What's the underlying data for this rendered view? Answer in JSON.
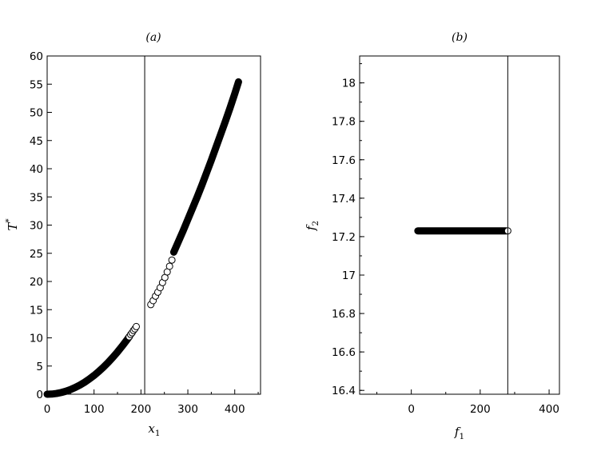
{
  "chart_data": [
    {
      "type": "scatter",
      "title": "(a)",
      "xlabel": "x",
      "xlabel_sub": "1",
      "ylabel": "T",
      "ylabel_sup": "*",
      "xlim": [
        0,
        455
      ],
      "ylim": [
        0,
        60
      ],
      "xticks": [
        0,
        100,
        200,
        300,
        400
      ],
      "yticks": [
        0,
        5,
        10,
        15,
        20,
        25,
        30,
        35,
        40,
        45,
        50,
        55,
        60
      ],
      "vline_x": 208,
      "series": [
        {
          "marker": "filled-circle",
          "color": "#000000",
          "x": [
            0,
            10,
            20,
            30,
            40,
            50,
            60,
            70,
            80,
            90,
            100,
            110,
            120,
            130,
            140,
            150,
            160,
            170,
            175
          ],
          "y": [
            0.0,
            0.03,
            0.13,
            0.3,
            0.53,
            0.83,
            1.2,
            1.63,
            2.13,
            2.7,
            3.33,
            4.03,
            4.8,
            5.63,
            6.53,
            7.5,
            8.53,
            9.63,
            10.2
          ]
        },
        {
          "marker": "filled-circle",
          "color": "#000000",
          "x": [
            270,
            280,
            290,
            300,
            310,
            320,
            330,
            340,
            350,
            360,
            370,
            380,
            390,
            400,
            408
          ],
          "y": [
            25.2,
            27.1,
            29.0,
            31.0,
            33.0,
            35.0,
            37.1,
            39.3,
            41.5,
            43.8,
            46.1,
            48.4,
            50.8,
            53.3,
            55.4
          ]
        },
        {
          "marker": "open-circle",
          "color": "#000000",
          "x": [
            175,
            178,
            181,
            184,
            187,
            190
          ],
          "y": [
            10.2,
            10.6,
            10.9,
            11.3,
            11.6,
            12.0
          ]
        },
        {
          "marker": "open-circle",
          "color": "#000000",
          "x": [
            221,
            226,
            231,
            236,
            241,
            246,
            251,
            256,
            261,
            266
          ],
          "y": [
            15.9,
            16.6,
            17.4,
            18.1,
            18.9,
            19.8,
            20.7,
            21.7,
            22.7,
            23.8
          ]
        }
      ]
    },
    {
      "type": "scatter",
      "title": "(b)",
      "xlabel": "f",
      "xlabel_sub": "1",
      "ylabel": "f",
      "ylabel_sub": "2",
      "xlim": [
        -150,
        430
      ],
      "ylim": [
        16.38,
        18.14
      ],
      "xticks": [
        0,
        200,
        400
      ],
      "yticks": [
        16.4,
        16.6,
        16.8,
        17,
        17.2,
        17.4,
        17.6,
        17.8,
        18
      ],
      "ytick_labels": [
        "16.4",
        "16.6",
        "16.8",
        "17",
        "17.2",
        "17.4",
        "17.6",
        "17.8",
        "18"
      ],
      "vline_x": 280,
      "series": [
        {
          "marker": "filled-line",
          "color": "#000000",
          "x": [
            19,
            275
          ],
          "y": [
            17.23,
            17.23
          ]
        },
        {
          "marker": "open-circle",
          "color": "#000000",
          "x": [
            280
          ],
          "y": [
            17.23
          ]
        }
      ]
    }
  ]
}
